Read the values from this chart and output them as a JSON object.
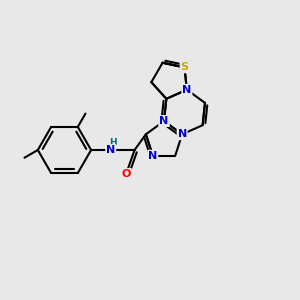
{
  "background_color": "#e8e8e8",
  "bond_color": "#000000",
  "bond_width": 1.5,
  "atom_colors": {
    "N": "#0000cc",
    "O": "#ff0000",
    "S": "#ccaa00",
    "C": "#000000",
    "H": "#007070"
  },
  "font_size_atom": 8,
  "font_size_h": 6.5,
  "xlim": [
    0.0,
    10.5
  ],
  "ylim": [
    1.5,
    9.5
  ]
}
